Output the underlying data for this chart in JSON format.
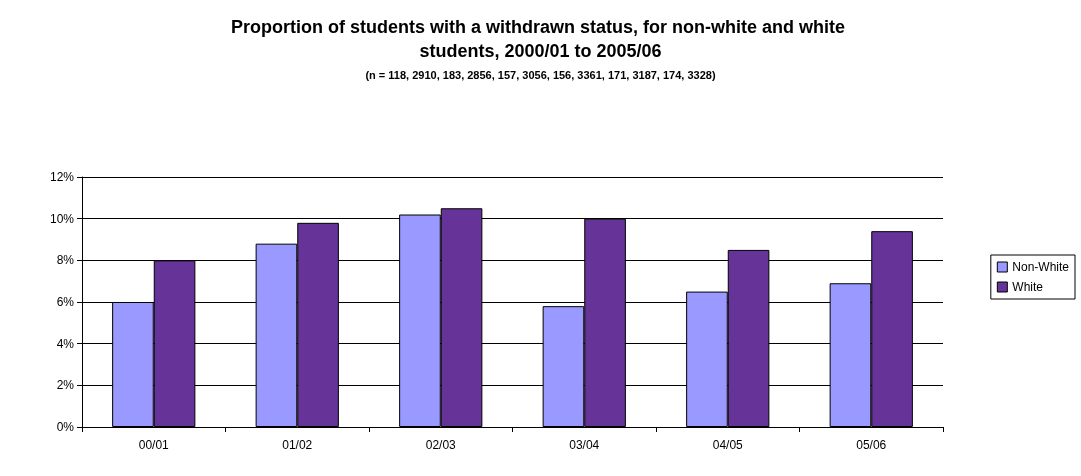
{
  "chart_data": {
    "type": "bar",
    "title": "Proportion of students with a withdrawn status, for non-white and white students, 2000/01 to 2005/06",
    "subtitle": "(n = 118, 2910, 183, 2856, 157, 3056, 156, 3361, 171, 3187, 174, 3328)",
    "categories": [
      "00/01",
      "01/02",
      "02/03",
      "03/04",
      "04/05",
      "05/06"
    ],
    "series": [
      {
        "name": "Non-White",
        "color": "#9999ff",
        "values": [
          6.0,
          8.8,
          10.2,
          5.8,
          6.5,
          6.9
        ]
      },
      {
        "name": "White",
        "color": "#663399",
        "values": [
          8.0,
          9.8,
          10.5,
          10.0,
          8.5,
          9.4
        ]
      }
    ],
    "ylim": [
      0,
      12
    ],
    "yticks": [
      {
        "value": 0,
        "label": "0%"
      },
      {
        "value": 2,
        "label": "2%"
      },
      {
        "value": 4,
        "label": "4%"
      },
      {
        "value": 6,
        "label": "6%"
      },
      {
        "value": 8,
        "label": "8%"
      },
      {
        "value": 10,
        "label": "10%"
      },
      {
        "value": 12,
        "label": "12%"
      }
    ],
    "grid": "y",
    "legend": "right"
  }
}
